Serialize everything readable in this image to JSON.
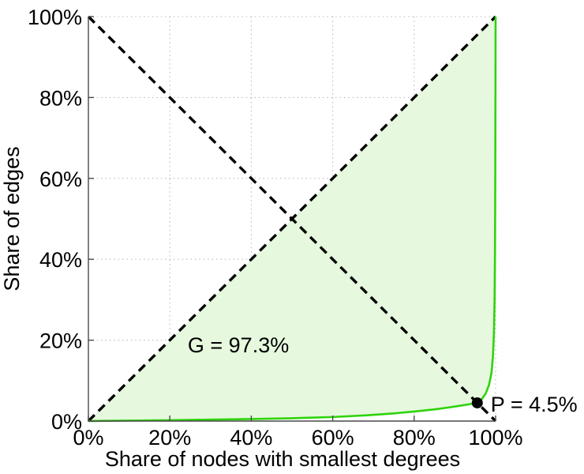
{
  "chart_data": {
    "type": "line",
    "xlabel": "Share of nodes with smallest degrees",
    "ylabel": "Share of edges",
    "xlim": [
      0,
      100
    ],
    "ylim": [
      0,
      100
    ],
    "grid": true,
    "legend_position": "none",
    "x_tick_values": [
      0,
      20,
      40,
      60,
      80,
      100
    ],
    "x_tick_labels": [
      "0%",
      "20%",
      "40%",
      "60%",
      "80%",
      "100%"
    ],
    "y_tick_values": [
      0,
      20,
      40,
      60,
      80,
      100
    ],
    "y_tick_labels": [
      "0%",
      "20%",
      "40%",
      "60%",
      "80%",
      "100%"
    ],
    "series": [
      {
        "name": "equality-diagonal",
        "style": "dashed",
        "color": "#000000",
        "points": [
          [
            0,
            0
          ],
          [
            100,
            100
          ]
        ]
      },
      {
        "name": "anti-diagonal",
        "style": "dashed",
        "color": "#000000",
        "points": [
          [
            0,
            100
          ],
          [
            100,
            0
          ]
        ]
      },
      {
        "name": "lorenz-curve",
        "style": "solid",
        "color": "#2fd30b",
        "points": [
          [
            0,
            0
          ],
          [
            10,
            0.12
          ],
          [
            20,
            0.22
          ],
          [
            30,
            0.35
          ],
          [
            40,
            0.5
          ],
          [
            50,
            0.7
          ],
          [
            60,
            1.0
          ],
          [
            68,
            1.4
          ],
          [
            75,
            1.9
          ],
          [
            80,
            2.35
          ],
          [
            85,
            2.9
          ],
          [
            88,
            3.3
          ],
          [
            91,
            3.75
          ],
          [
            93.5,
            4.15
          ],
          [
            95.5,
            4.5
          ],
          [
            96.6,
            5.4
          ],
          [
            97.6,
            6.9
          ],
          [
            98.4,
            9
          ],
          [
            99,
            12
          ],
          [
            99.35,
            16
          ],
          [
            99.6,
            22
          ],
          [
            99.75,
            30
          ],
          [
            99.85,
            42
          ],
          [
            99.92,
            60
          ],
          [
            99.97,
            82
          ],
          [
            100,
            100
          ]
        ]
      }
    ],
    "fill_area": {
      "name": "gini-area",
      "between": [
        "equality-diagonal",
        "lorenz-curve"
      ],
      "color": "#e6f8de",
      "gini_value": "97.3%"
    },
    "marker": {
      "name": "intersection-point-p",
      "x": 95.5,
      "y": 4.5,
      "color": "#000000",
      "radius": 7
    },
    "annotations": [
      {
        "name": "gini-label",
        "text": "G = 97.3%",
        "x": 24.4,
        "y": 17.0
      },
      {
        "name": "p-label",
        "text": "P = 4.5%",
        "x": 98.8,
        "y": 2.3
      }
    ]
  },
  "colors": {
    "background": "#ffffff",
    "axis": "#4a4a4a",
    "grid": "#b5b5b5",
    "text": "#000000"
  }
}
